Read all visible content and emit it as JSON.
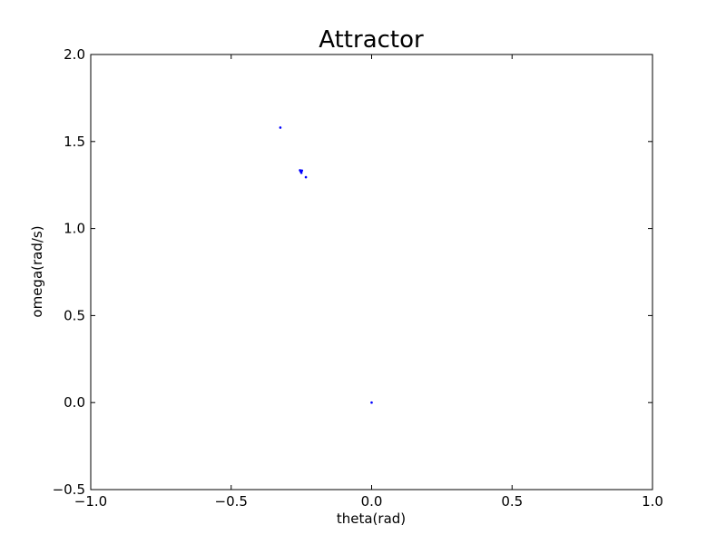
{
  "chart_data": {
    "type": "scatter",
    "title": "Attractor",
    "xlabel": "theta(rad)",
    "ylabel": "omega(rad/s)",
    "xlim": [
      -1.0,
      1.0
    ],
    "ylim": [
      -0.5,
      2.0
    ],
    "xticks": [
      -1.0,
      -0.5,
      0.0,
      0.5,
      1.0
    ],
    "xtick_labels": [
      "−1.0",
      "−0.5",
      "0.0",
      "0.5",
      "1.0"
    ],
    "yticks": [
      -0.5,
      0.0,
      0.5,
      1.0,
      1.5,
      2.0
    ],
    "ytick_labels": [
      "−0.5",
      "0.0",
      "0.5",
      "1.0",
      "1.5",
      "2.0"
    ],
    "grid": false,
    "marker_color": "#0000ff",
    "points": [
      {
        "x": -0.325,
        "y": 1.58
      },
      {
        "x": -0.255,
        "y": 1.335
      },
      {
        "x": -0.253,
        "y": 1.33
      },
      {
        "x": -0.251,
        "y": 1.325
      },
      {
        "x": -0.25,
        "y": 1.32
      },
      {
        "x": -0.248,
        "y": 1.333
      },
      {
        "x": -0.234,
        "y": 1.295
      },
      {
        "x": 0.0,
        "y": 0.0
      }
    ]
  }
}
